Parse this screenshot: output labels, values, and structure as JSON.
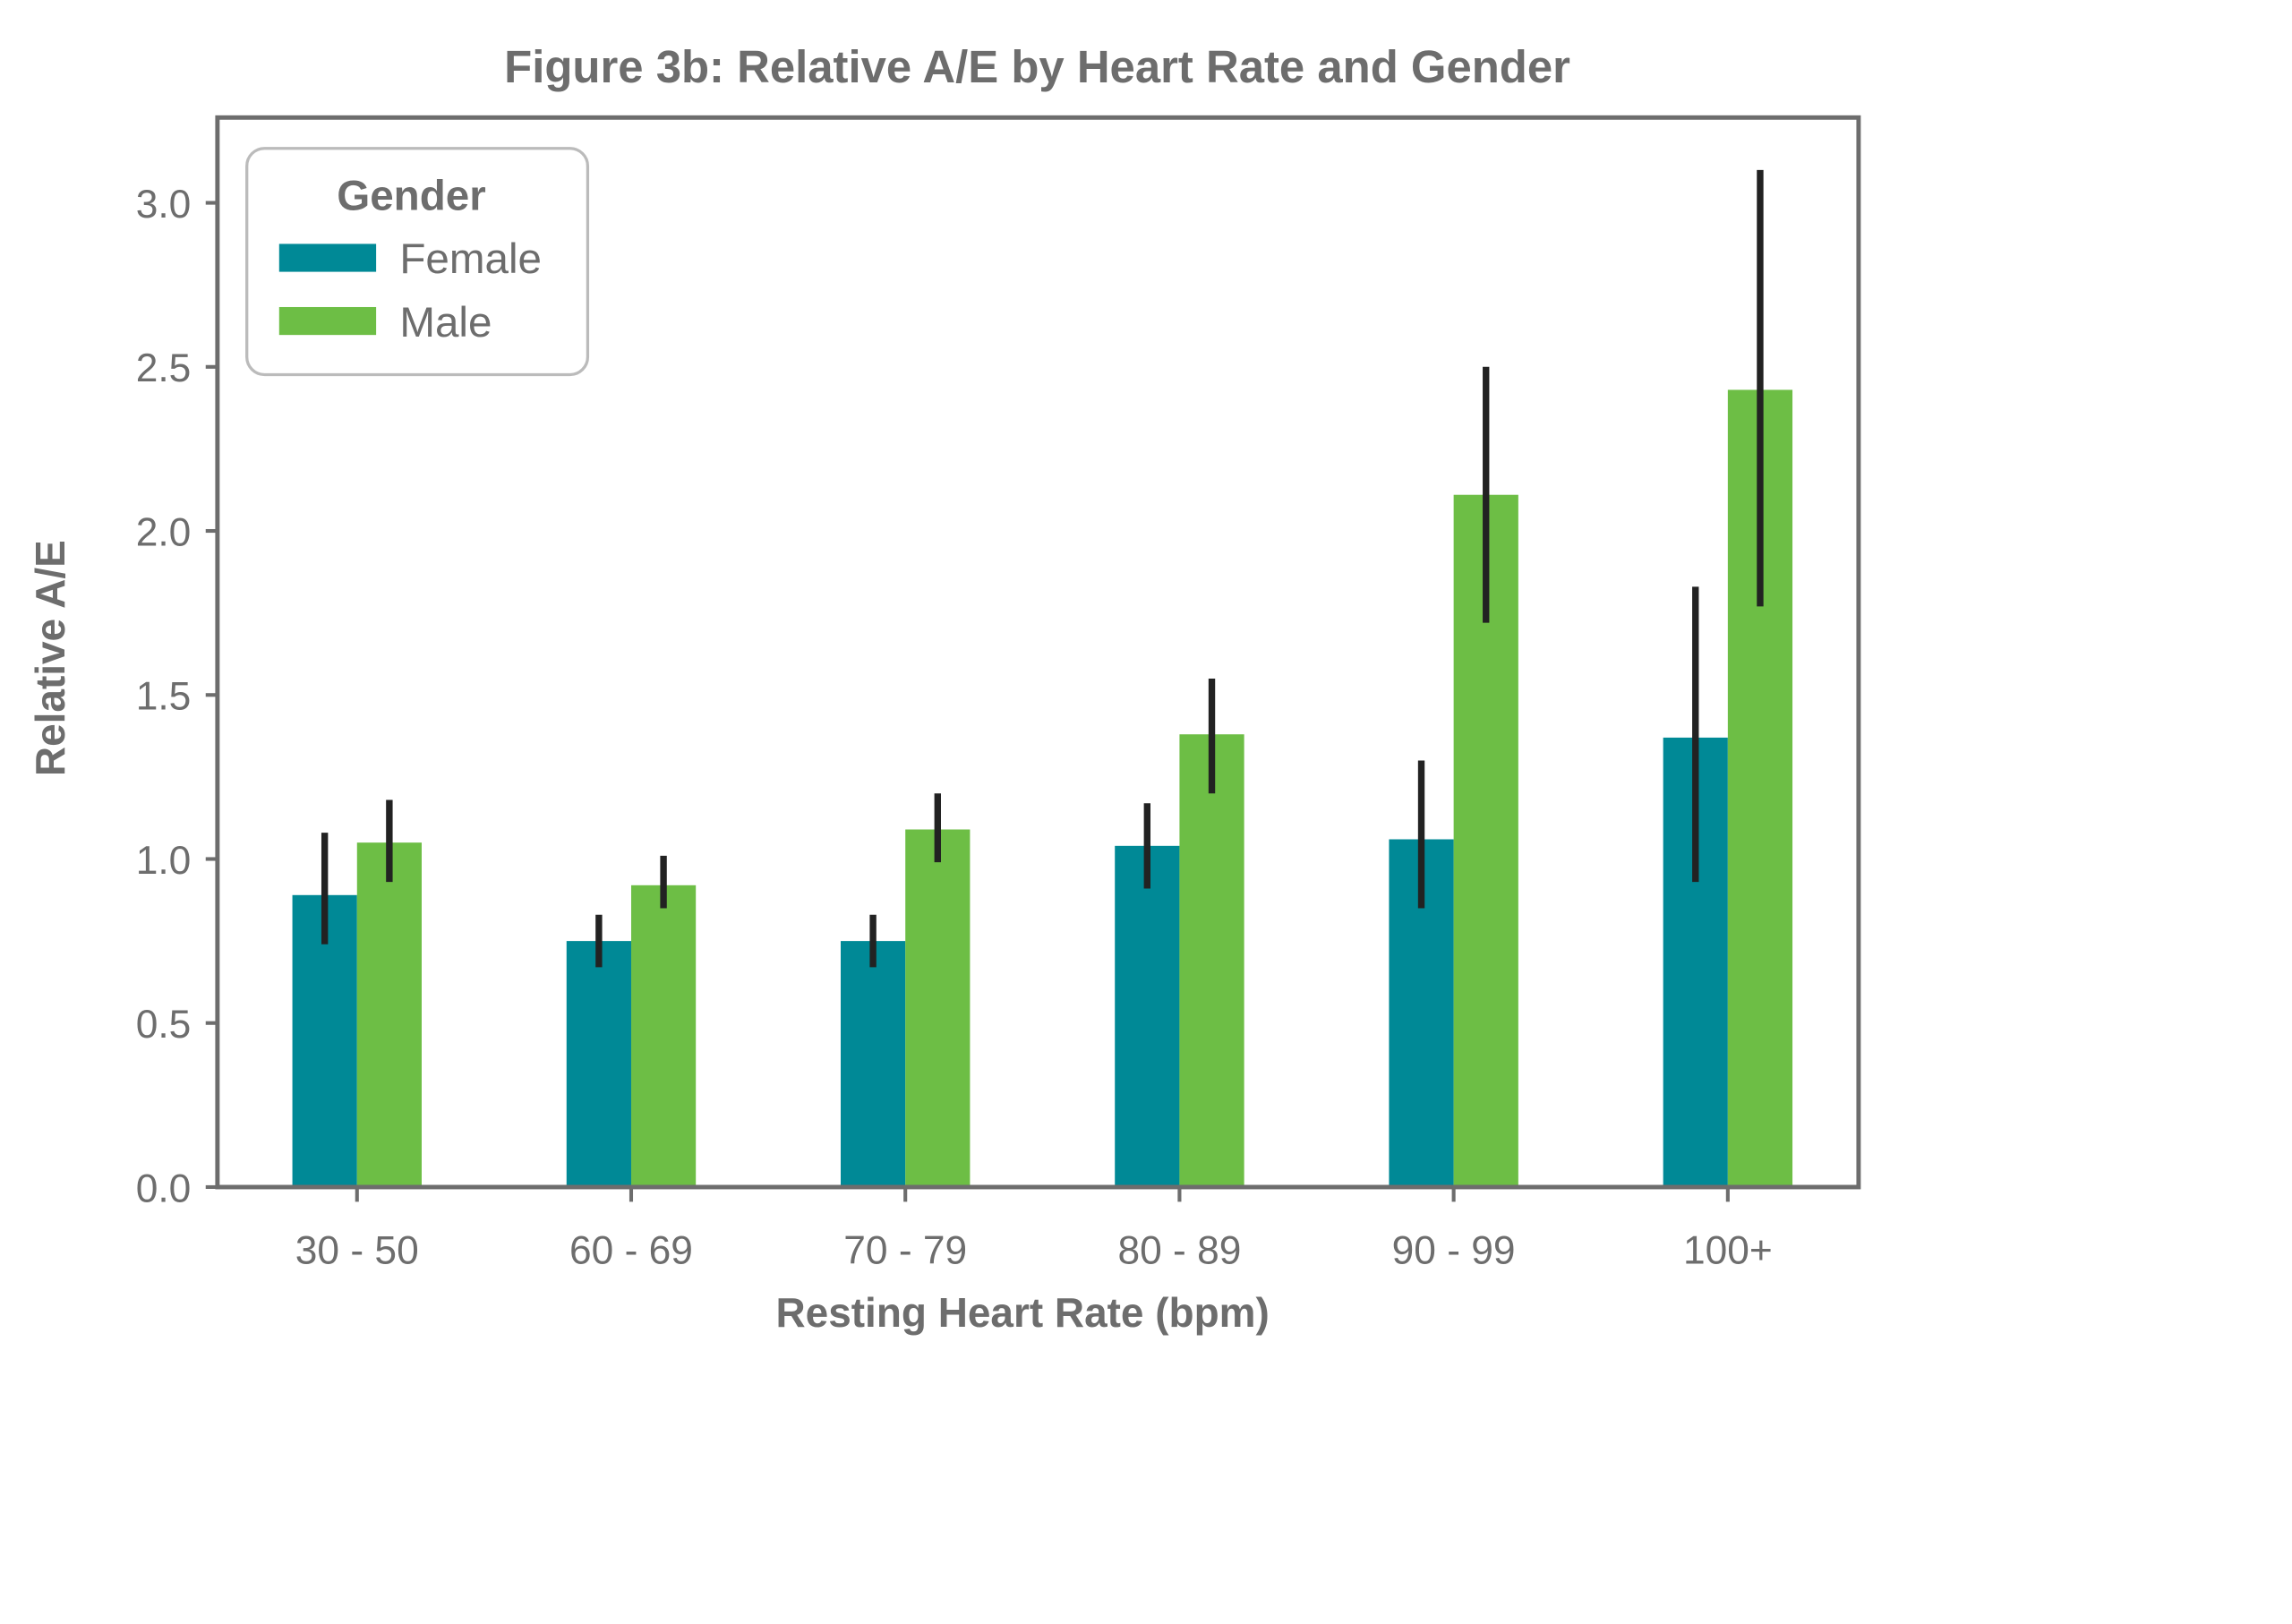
{
  "chart_data": {
    "type": "bar",
    "title": "Figure 3b: Relative A/E by Heart Rate and Gender",
    "xlabel": "Resting Heart Rate (bpm)",
    "ylabel": "Relative A/E",
    "categories": [
      "30 - 50",
      "60 - 69",
      "70 - 79",
      "80 - 89",
      "90 - 99",
      "100+"
    ],
    "ylim": [
      0,
      3.26
    ],
    "yticks": [
      "0.0",
      "0.5",
      "1.0",
      "1.5",
      "2.0",
      "2.5",
      "3.0"
    ],
    "grid": false,
    "legend": {
      "title": "Gender",
      "placement": "top-left"
    },
    "series": [
      {
        "name": "Female",
        "color": "#008996",
        "values": [
          0.89,
          0.75,
          0.75,
          1.04,
          1.06,
          1.37
        ],
        "error_low": [
          0.74,
          0.67,
          0.67,
          0.91,
          0.85,
          0.93
        ],
        "error_high": [
          1.08,
          0.83,
          0.83,
          1.17,
          1.3,
          1.83
        ]
      },
      {
        "name": "Male",
        "color": "#6dbe45",
        "values": [
          1.05,
          0.92,
          1.09,
          1.38,
          2.11,
          2.43
        ],
        "error_low": [
          0.93,
          0.85,
          0.99,
          1.2,
          1.72,
          1.77
        ],
        "error_high": [
          1.18,
          1.01,
          1.2,
          1.55,
          2.5,
          3.1
        ]
      }
    ],
    "error_color": "#222222",
    "axis_color": "#6d6d6d"
  }
}
